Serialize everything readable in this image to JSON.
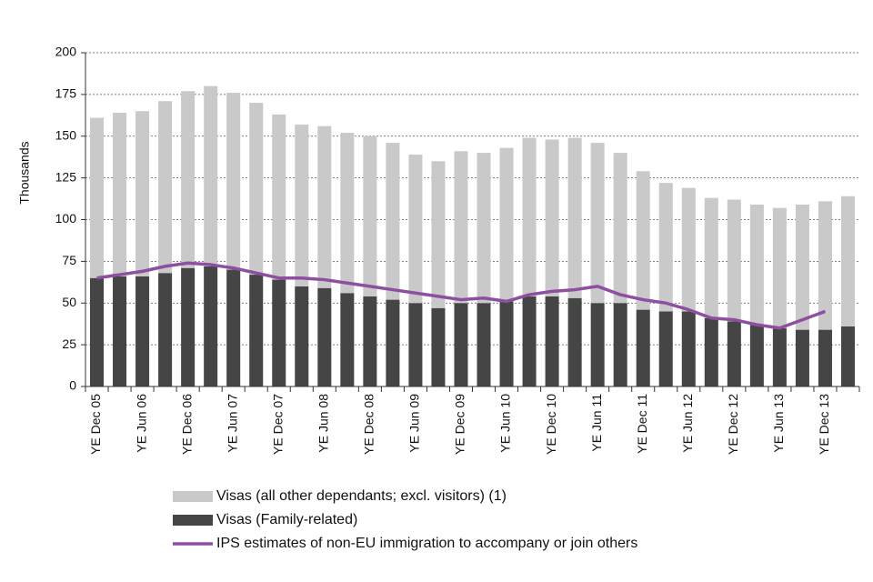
{
  "chart_data": {
    "type": "bar",
    "stacked": true,
    "y_label": "Thousands",
    "categories": [
      "YE Dec 05",
      null,
      "YE Jun 06",
      null,
      "YE Dec 06",
      null,
      "YE Jun 07",
      null,
      "YE Dec 07",
      null,
      "YE Jun 08",
      null,
      "YE Dec 08",
      null,
      "YE Jun 09",
      null,
      "YE Dec 09",
      null,
      "YE Jun 10",
      null,
      "YE Dec 10",
      null,
      "YE Jun 11",
      null,
      "YE Dec 11",
      null,
      "YE Jun 12",
      null,
      "YE Dec 12",
      null,
      "YE Jun 13",
      null,
      "YE Dec 13",
      null
    ],
    "series": [
      {
        "name": "Visas (all other dependants; excl. visitors) (1)",
        "type": "bar",
        "color": "#c9c9c9",
        "values": [
          96,
          98,
          99,
          103,
          106,
          108,
          106,
          103,
          99,
          97,
          97,
          96,
          96,
          94,
          89,
          88,
          91,
          90,
          92,
          95,
          94,
          96,
          96,
          90,
          83,
          77,
          74,
          72,
          73,
          72,
          72,
          75,
          77,
          78
        ]
      },
      {
        "name": "Visas (Family-related)",
        "type": "bar",
        "color": "#454545",
        "values": [
          65,
          66,
          66,
          68,
          71,
          72,
          70,
          67,
          64,
          60,
          59,
          56,
          54,
          52,
          50,
          47,
          50,
          50,
          51,
          54,
          54,
          53,
          50,
          50,
          46,
          45,
          45,
          41,
          39,
          37,
          35,
          34,
          34,
          36
        ]
      },
      {
        "name": "IPS estimates of non-EU immigration to accompany or join others",
        "type": "line",
        "color": "#8e4fa0",
        "values": [
          65,
          67,
          69,
          72,
          74,
          73,
          71,
          68,
          65,
          65,
          64,
          62,
          60,
          58,
          56,
          54,
          52,
          53,
          51,
          55,
          57,
          58,
          60,
          55,
          52,
          50,
          46,
          41,
          40,
          37,
          35,
          40,
          45,
          null
        ]
      }
    ],
    "ylim": [
      0,
      200
    ],
    "yticks": [
      0,
      25,
      50,
      75,
      100,
      125,
      150,
      175,
      200
    ],
    "grid": true
  }
}
